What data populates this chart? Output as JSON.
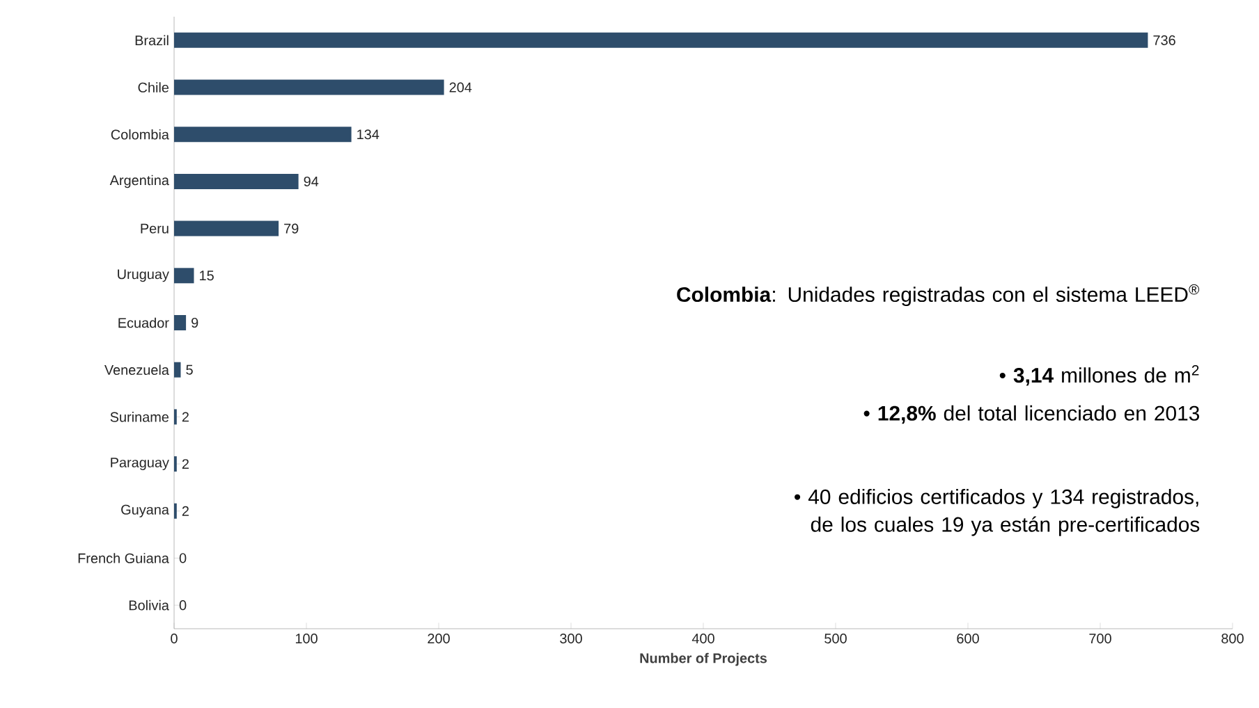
{
  "chart_data": {
    "type": "bar",
    "orientation": "horizontal",
    "xlabel": "Number of Projects",
    "categories": [
      "Brazil",
      "Chile",
      "Colombia",
      "Argentina",
      "Peru",
      "Uruguay",
      "Ecuador",
      "Venezuela",
      "Suriname",
      "Paraguay",
      "Guyana",
      "French Guiana",
      "Bolivia"
    ],
    "values": [
      736,
      204,
      134,
      94,
      79,
      15,
      9,
      5,
      2,
      2,
      2,
      0,
      0
    ],
    "color": "#2e4d6b",
    "xlim": [
      0,
      800
    ],
    "xticks": [
      0,
      100,
      200,
      300,
      400,
      500,
      600,
      700,
      800
    ],
    "data_labels": true,
    "grid": false,
    "annotations": [
      "**Colombia**: Unidades registradas con el sistema LEED$^{®}$",
      "• **3,14** millones de m$^{2}$",
      "• **12,8%** del total licenciado en 2013",
      "• 40 edificios certificados y 134 registrados, de los cuales 19 ya están pre-certificados"
    ]
  }
}
